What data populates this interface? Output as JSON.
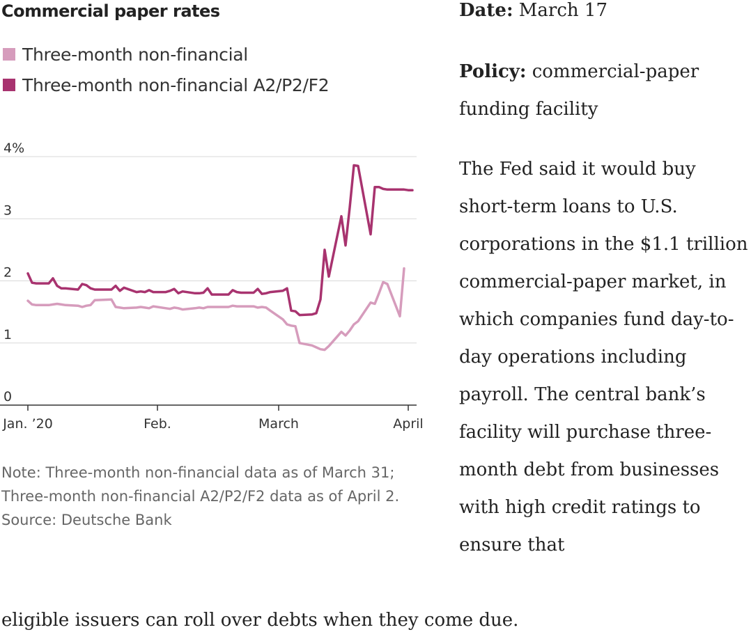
{
  "colors": {
    "non_financial": "#d69cbc",
    "a2p2f2": "#a8336f",
    "grid": "#d9d9d9",
    "axis": "#333333"
  },
  "chart_data": {
    "type": "line",
    "title": "Commercial paper rates",
    "xlabel": "",
    "ylabel": "",
    "ylim": [
      0,
      4
    ],
    "y_ticks": [
      {
        "value": 4,
        "label": "4%"
      },
      {
        "value": 3,
        "label": "3"
      },
      {
        "value": 2,
        "label": "2"
      },
      {
        "value": 1,
        "label": "1"
      },
      {
        "value": 0,
        "label": "0"
      }
    ],
    "x_ticks": [
      {
        "date": "2020-01-01",
        "label": "Jan. ’20"
      },
      {
        "date": "2020-02-01",
        "label": "Feb."
      },
      {
        "date": "2020-03-01",
        "label": "March"
      },
      {
        "date": "2020-04-01",
        "label": "April"
      }
    ],
    "x_range": [
      "2020-01-01",
      "2020-04-03"
    ],
    "grid": true,
    "legend_position": "top-left",
    "series": [
      {
        "name": "Three-month non-financial",
        "points": [
          [
            "2020-01-01",
            1.68
          ],
          [
            "2020-01-02",
            1.62
          ],
          [
            "2020-01-03",
            1.61
          ],
          [
            "2020-01-06",
            1.61
          ],
          [
            "2020-01-07",
            1.62
          ],
          [
            "2020-01-08",
            1.63
          ],
          [
            "2020-01-09",
            1.62
          ],
          [
            "2020-01-10",
            1.61
          ],
          [
            "2020-01-13",
            1.6
          ],
          [
            "2020-01-14",
            1.58
          ],
          [
            "2020-01-15",
            1.6
          ],
          [
            "2020-01-16",
            1.61
          ],
          [
            "2020-01-17",
            1.69
          ],
          [
            "2020-01-21",
            1.7
          ],
          [
            "2020-01-22",
            1.58
          ],
          [
            "2020-01-23",
            1.57
          ],
          [
            "2020-01-24",
            1.56
          ],
          [
            "2020-01-27",
            1.57
          ],
          [
            "2020-01-28",
            1.58
          ],
          [
            "2020-01-29",
            1.57
          ],
          [
            "2020-01-30",
            1.56
          ],
          [
            "2020-01-31",
            1.59
          ],
          [
            "2020-02-03",
            1.56
          ],
          [
            "2020-02-04",
            1.55
          ],
          [
            "2020-02-05",
            1.57
          ],
          [
            "2020-02-06",
            1.56
          ],
          [
            "2020-02-07",
            1.54
          ],
          [
            "2020-02-10",
            1.56
          ],
          [
            "2020-02-11",
            1.57
          ],
          [
            "2020-02-12",
            1.56
          ],
          [
            "2020-02-13",
            1.58
          ],
          [
            "2020-02-14",
            1.58
          ],
          [
            "2020-02-18",
            1.58
          ],
          [
            "2020-02-19",
            1.6
          ],
          [
            "2020-02-20",
            1.59
          ],
          [
            "2020-02-21",
            1.59
          ],
          [
            "2020-02-24",
            1.59
          ],
          [
            "2020-02-25",
            1.57
          ],
          [
            "2020-02-26",
            1.58
          ],
          [
            "2020-02-27",
            1.57
          ],
          [
            "2020-02-28",
            1.52
          ],
          [
            "2020-03-02",
            1.38
          ],
          [
            "2020-03-03",
            1.3
          ],
          [
            "2020-03-04",
            1.28
          ],
          [
            "2020-03-05",
            1.27
          ],
          [
            "2020-03-06",
            1.0
          ],
          [
            "2020-03-09",
            0.96
          ],
          [
            "2020-03-10",
            0.93
          ],
          [
            "2020-03-11",
            0.9
          ],
          [
            "2020-03-12",
            0.89
          ],
          [
            "2020-03-13",
            0.95
          ],
          [
            "2020-03-16",
            1.18
          ],
          [
            "2020-03-17",
            1.12
          ],
          [
            "2020-03-18",
            1.2
          ],
          [
            "2020-03-19",
            1.3
          ],
          [
            "2020-03-20",
            1.35
          ],
          [
            "2020-03-23",
            1.65
          ],
          [
            "2020-03-24",
            1.63
          ],
          [
            "2020-03-25",
            1.8
          ],
          [
            "2020-03-26",
            1.98
          ],
          [
            "2020-03-27",
            1.95
          ],
          [
            "2020-03-30",
            1.43
          ],
          [
            "2020-03-31",
            2.2
          ]
        ]
      },
      {
        "name": "Three-month non-financial A2/P2/F2",
        "points": [
          [
            "2020-01-01",
            2.12
          ],
          [
            "2020-01-02",
            1.97
          ],
          [
            "2020-01-03",
            1.96
          ],
          [
            "2020-01-06",
            1.96
          ],
          [
            "2020-01-07",
            2.04
          ],
          [
            "2020-01-08",
            1.92
          ],
          [
            "2020-01-09",
            1.88
          ],
          [
            "2020-01-10",
            1.88
          ],
          [
            "2020-01-13",
            1.86
          ],
          [
            "2020-01-14",
            1.95
          ],
          [
            "2020-01-15",
            1.93
          ],
          [
            "2020-01-16",
            1.88
          ],
          [
            "2020-01-17",
            1.86
          ],
          [
            "2020-01-21",
            1.86
          ],
          [
            "2020-01-22",
            1.92
          ],
          [
            "2020-01-23",
            1.84
          ],
          [
            "2020-01-24",
            1.89
          ],
          [
            "2020-01-27",
            1.82
          ],
          [
            "2020-01-28",
            1.83
          ],
          [
            "2020-01-29",
            1.82
          ],
          [
            "2020-01-30",
            1.85
          ],
          [
            "2020-01-31",
            1.82
          ],
          [
            "2020-02-03",
            1.82
          ],
          [
            "2020-02-04",
            1.84
          ],
          [
            "2020-02-05",
            1.87
          ],
          [
            "2020-02-06",
            1.8
          ],
          [
            "2020-02-07",
            1.83
          ],
          [
            "2020-02-10",
            1.8
          ],
          [
            "2020-02-11",
            1.8
          ],
          [
            "2020-02-12",
            1.81
          ],
          [
            "2020-02-13",
            1.88
          ],
          [
            "2020-02-14",
            1.78
          ],
          [
            "2020-02-18",
            1.78
          ],
          [
            "2020-02-19",
            1.85
          ],
          [
            "2020-02-20",
            1.82
          ],
          [
            "2020-02-21",
            1.81
          ],
          [
            "2020-02-24",
            1.81
          ],
          [
            "2020-02-25",
            1.87
          ],
          [
            "2020-02-26",
            1.79
          ],
          [
            "2020-02-27",
            1.8
          ],
          [
            "2020-02-28",
            1.82
          ],
          [
            "2020-03-02",
            1.84
          ],
          [
            "2020-03-03",
            1.88
          ],
          [
            "2020-03-04",
            1.52
          ],
          [
            "2020-03-05",
            1.51
          ],
          [
            "2020-03-06",
            1.45
          ],
          [
            "2020-03-09",
            1.46
          ],
          [
            "2020-03-10",
            1.48
          ],
          [
            "2020-03-11",
            1.7
          ],
          [
            "2020-03-12",
            2.5
          ],
          [
            "2020-03-13",
            2.07
          ],
          [
            "2020-03-16",
            3.04
          ],
          [
            "2020-03-17",
            2.57
          ],
          [
            "2020-03-18",
            3.18
          ],
          [
            "2020-03-19",
            3.86
          ],
          [
            "2020-03-20",
            3.85
          ],
          [
            "2020-03-23",
            2.75
          ],
          [
            "2020-03-24",
            3.51
          ],
          [
            "2020-03-25",
            3.51
          ],
          [
            "2020-03-26",
            3.48
          ],
          [
            "2020-03-27",
            3.47
          ],
          [
            "2020-03-30",
            3.47
          ],
          [
            "2020-03-31",
            3.47
          ],
          [
            "2020-04-01",
            3.46
          ],
          [
            "2020-04-02",
            3.46
          ]
        ]
      }
    ]
  },
  "notes": {
    "note": "Note: Three-month non-financial data as of March 31; Three-month non-financial A2/P2/F2 data as of April 2.",
    "source": "Source: Deutsche Bank"
  },
  "article": {
    "date_label": "Date:",
    "date_value": " March 17",
    "policy_label": "Policy:",
    "policy_value": " commercial-paper funding facility",
    "body": "The Fed said it would buy short-term loans to U.S. corporations in the $1.1 trillion commercial-paper market, in which companies fund day-to-day operations including payroll. The central bank’s facility will purchase three-month debt from businesses with high credit ratings to ensure that",
    "body_tail": "eligible issuers can roll over debts when they come due."
  }
}
